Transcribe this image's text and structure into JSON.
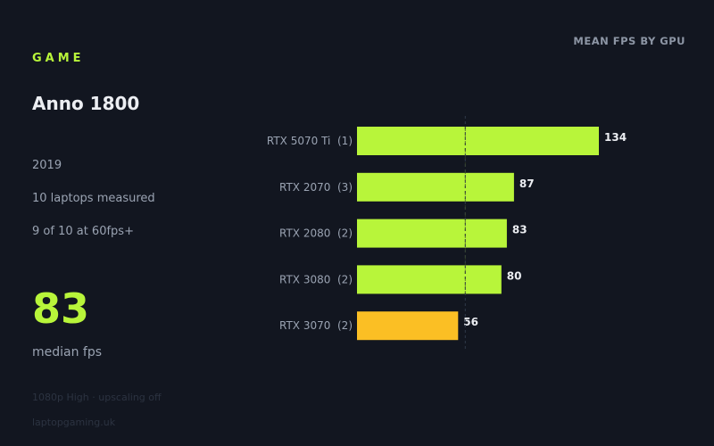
{
  "section_label": "GAME",
  "game": {
    "title": "Anno 1800",
    "year": "2019",
    "laptops_measured": "10 laptops measured",
    "share_60fps": "9 of 10 at 60fps+"
  },
  "headline": {
    "value": "83",
    "label": "median fps"
  },
  "footer": {
    "settings": "1080p High · upscaling off",
    "source": "laptopgaming.uk"
  },
  "colors": {
    "background": "#121620",
    "accent": "#b8f53a",
    "below_60": "#fbbf24",
    "muted_text": "#9aa3b2",
    "reference_line": "#2f3a4a"
  },
  "chart_data": {
    "type": "bar",
    "orientation": "horizontal",
    "title": "MEAN FPS BY GPU",
    "categories": [
      "RTX 5070 Ti  (1)",
      "RTX 2070  (3)",
      "RTX 2080  (2)",
      "RTX 3080  (2)",
      "RTX 3070  (2)"
    ],
    "values": [
      134,
      87,
      83,
      80,
      56
    ],
    "value_labels": [
      "134",
      "87",
      "83",
      "80",
      "56"
    ],
    "reference_line": 60,
    "xlim": [
      0,
      134
    ],
    "grid": false,
    "legend": "none"
  }
}
